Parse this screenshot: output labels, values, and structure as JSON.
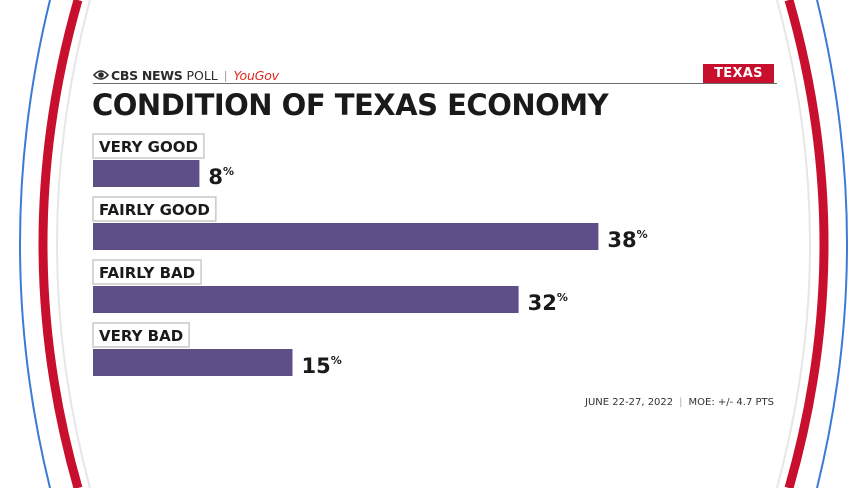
{
  "brand": {
    "network": "CBS NEWS",
    "product": "POLL",
    "separator": "|",
    "partner": "YouGov"
  },
  "tag": {
    "label": "TEXAS"
  },
  "colors": {
    "bar": "#5e5087",
    "tag": "#c8102e",
    "arc_red": "#c8102e",
    "arc_blue": "#3a7bd5",
    "partner": "#e0281f"
  },
  "footer": {
    "dates": "JUNE 22-27, 2022",
    "separator": "|",
    "moe": "MOE: +/- 4.7 PTS"
  },
  "chart_data": {
    "type": "bar",
    "orientation": "horizontal",
    "title": "CONDITION OF TEXAS ECONOMY",
    "categories": [
      "VERY GOOD",
      "FAIRLY GOOD",
      "FAIRLY BAD",
      "VERY BAD"
    ],
    "values": [
      8,
      38,
      32,
      15
    ],
    "unit": "%",
    "xlim": [
      0,
      100
    ],
    "grid": false,
    "legend": "none"
  }
}
